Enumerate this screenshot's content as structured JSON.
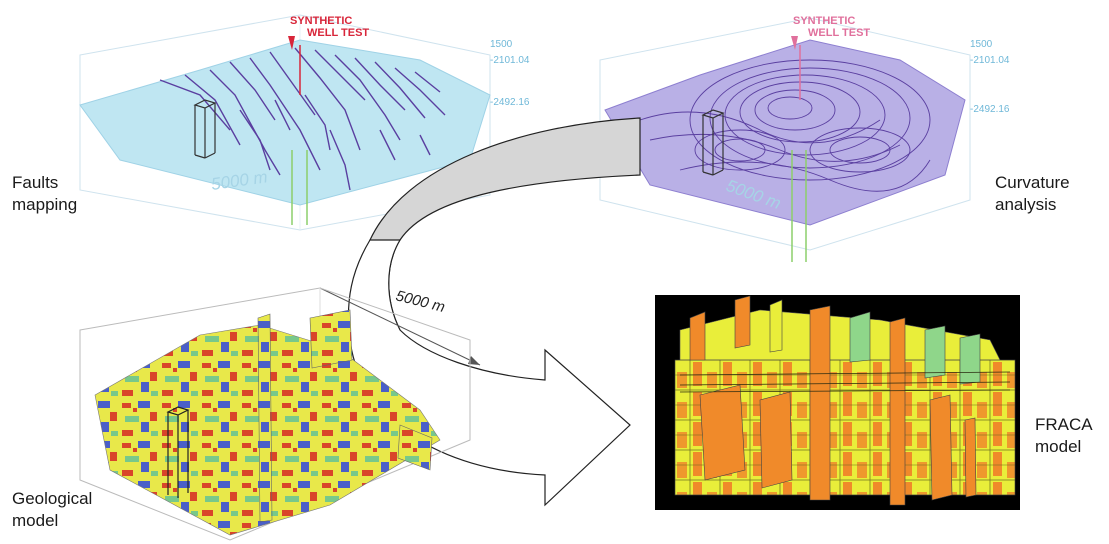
{
  "panels": {
    "faults": {
      "label_line1": "Faults",
      "label_line2": "mapping",
      "well_label_line1": "SYNTHETIC",
      "well_label_line2": "WELL TEST",
      "depth_top": "1500",
      "depth_mid": "-2101.04",
      "depth_bottom": "-2492.16",
      "scale": "5000 m"
    },
    "curvature": {
      "label_line1": "Curvature",
      "label_line2": "analysis",
      "well_label_line1": "SYNTHETIC",
      "well_label_line2": "WELL TEST",
      "depth_top": "1500",
      "depth_mid": "-2101.04",
      "depth_bottom": "-2492.16",
      "scale": "5000 m"
    },
    "geological": {
      "label_line1": "Geological",
      "label_line2": "model",
      "scale": "5000 m"
    },
    "fraca": {
      "label_line1": "FRACA",
      "label_line2": "model"
    }
  },
  "colors": {
    "fault_lines": "#5a3fa0",
    "surface_blue": "#bfe6f2",
    "surface_purple": "#b9b0e6",
    "well_label": "#d8263a",
    "depth_text": "#6fb8d8",
    "well_green": "#8ccf6a",
    "arrow_fill": "#d6d6d6",
    "geo_yellow": "#e8e84a",
    "geo_red": "#d9452a",
    "geo_blue": "#4a5fc8",
    "geo_green": "#78c88a",
    "fraca_orange": "#f08a2a",
    "fraca_yellow": "#e9ee3a",
    "fraca_green": "#8fd68a",
    "fraca_bg": "#000000"
  }
}
